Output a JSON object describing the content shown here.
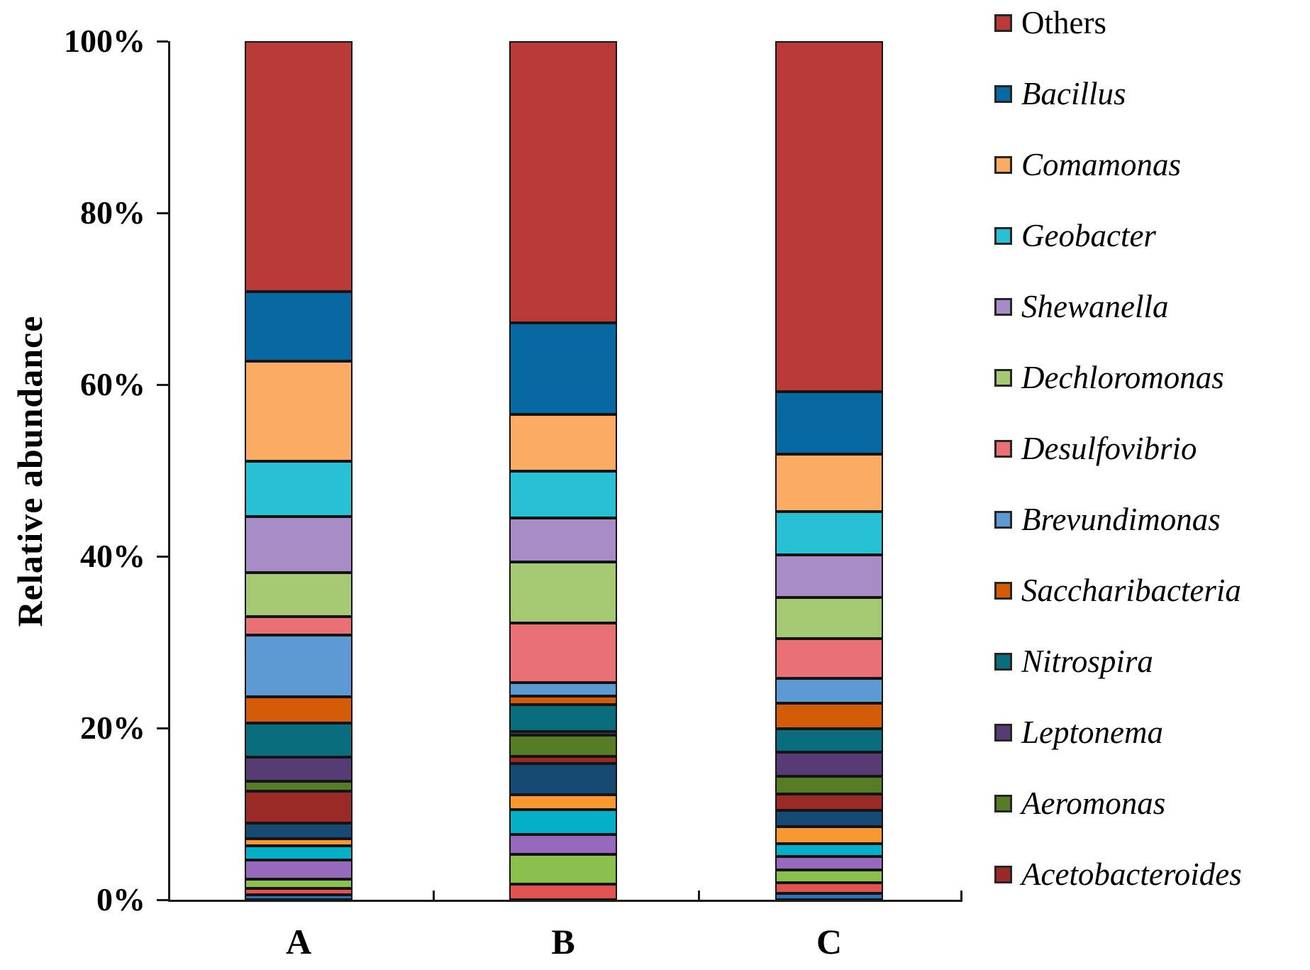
{
  "figure": {
    "background": "#ffffff",
    "axis_color": "#1a1a1a",
    "segment_border_color": "#141414",
    "text_color": "#000000"
  },
  "chart_data": {
    "type": "bar",
    "subtype": "stacked-100-percent-column",
    "title": "",
    "xlabel": "",
    "ylabel": "Relative abundance",
    "ylim": [
      0,
      100
    ],
    "grid": false,
    "legend_position": "right",
    "yticks": [
      {
        "value": 100,
        "label": "100%"
      },
      {
        "value": 80,
        "label": "80%"
      },
      {
        "value": 60,
        "label": "60%"
      },
      {
        "value": 40,
        "label": "40%"
      },
      {
        "value": 20,
        "label": "20%"
      },
      {
        "value": 0,
        "label": "0%"
      }
    ],
    "categories": [
      "A",
      "B",
      "C"
    ],
    "legend": [
      {
        "key": "others",
        "label": "Others",
        "italic": false,
        "color": "#b93a37"
      },
      {
        "key": "bacillus",
        "label": "Bacillus",
        "italic": true,
        "color": "#0768a2"
      },
      {
        "key": "comamonas",
        "label": "Comamonas",
        "italic": true,
        "color": "#fcab64"
      },
      {
        "key": "geobacter",
        "label": "Geobacter",
        "italic": true,
        "color": "#27c0d4"
      },
      {
        "key": "shewanella",
        "label": "Shewanella",
        "italic": true,
        "color": "#a78cc5"
      },
      {
        "key": "dechloromonas",
        "label": "Dechloromonas",
        "italic": true,
        "color": "#a6c973"
      },
      {
        "key": "desulfovibrio",
        "label": "Desulfovibrio",
        "italic": true,
        "color": "#e97175"
      },
      {
        "key": "brevundimonas",
        "label": "Brevundimonas",
        "italic": true,
        "color": "#5d9ad3"
      },
      {
        "key": "saccharibacteria",
        "label": "Saccharibacteria",
        "italic": true,
        "color": "#d45c08"
      },
      {
        "key": "nitrospira",
        "label": "Nitrospira",
        "italic": true,
        "color": "#0a6d7d"
      },
      {
        "key": "leptonema",
        "label": "Leptonema",
        "italic": true,
        "color": "#573c74"
      },
      {
        "key": "aeromonas",
        "label": "Aeromonas",
        "italic": true,
        "color": "#567d26"
      },
      {
        "key": "acetobacteroides",
        "label": "Acetobacteroides",
        "italic": true,
        "color": "#992a26"
      }
    ],
    "unlabeled_minor_palette": {
      "m_navy": "#164a73",
      "m_orange": "#f8982f",
      "m_cyan": "#04b0c7",
      "m_purple": "#9769bd",
      "m_green": "#8cc04e",
      "m_red": "#e05351",
      "m_blue": "#2a74b8"
    },
    "note": "Segments below Acetobacteroides at the bottom of each bar are unlabeled minor genera drawn with recycled palette colours.",
    "bars": [
      {
        "category": "A",
        "segments_top_to_bottom": [
          {
            "series": "others",
            "value": 29.2
          },
          {
            "series": "bacillus",
            "value": 8.1
          },
          {
            "series": "comamonas",
            "value": 11.6
          },
          {
            "series": "geobacter",
            "value": 6.5
          },
          {
            "series": "shewanella",
            "value": 6.5
          },
          {
            "series": "dechloromonas",
            "value": 5.1
          },
          {
            "series": "desulfovibrio",
            "value": 2.2
          },
          {
            "series": "brevundimonas",
            "value": 7.2
          },
          {
            "series": "saccharibacteria",
            "value": 3.0
          },
          {
            "series": "nitrospira",
            "value": 4.0
          },
          {
            "series": "leptonema",
            "value": 2.8
          },
          {
            "series": "aeromonas",
            "value": 1.2
          },
          {
            "series": "acetobacteroides",
            "value": 3.7
          },
          {
            "series": "m_navy",
            "value": 1.8
          },
          {
            "series": "m_orange",
            "value": 0.8
          },
          {
            "series": "m_cyan",
            "value": 1.7
          },
          {
            "series": "m_purple",
            "value": 2.2
          },
          {
            "series": "m_green",
            "value": 1.1
          },
          {
            "series": "m_red",
            "value": 0.7
          },
          {
            "series": "m_blue",
            "value": 0.6
          }
        ]
      },
      {
        "category": "B",
        "segments_top_to_bottom": [
          {
            "series": "others",
            "value": 32.8
          },
          {
            "series": "bacillus",
            "value": 10.7
          },
          {
            "series": "comamonas",
            "value": 6.6
          },
          {
            "series": "geobacter",
            "value": 5.4
          },
          {
            "series": "shewanella",
            "value": 5.2
          },
          {
            "series": "dechloromonas",
            "value": 7.1
          },
          {
            "series": "desulfovibrio",
            "value": 6.9
          },
          {
            "series": "brevundimonas",
            "value": 1.6
          },
          {
            "series": "saccharibacteria",
            "value": 1.0
          },
          {
            "series": "nitrospira",
            "value": 3.1
          },
          {
            "series": "leptonema",
            "value": 0.4
          },
          {
            "series": "aeromonas",
            "value": 2.5
          },
          {
            "series": "acetobacteroides",
            "value": 0.8
          },
          {
            "series": "m_navy",
            "value": 3.7
          },
          {
            "series": "m_orange",
            "value": 1.7
          },
          {
            "series": "m_cyan",
            "value": 2.9
          },
          {
            "series": "m_purple",
            "value": 2.3
          },
          {
            "series": "m_green",
            "value": 3.5
          },
          {
            "series": "m_red",
            "value": 1.8
          }
        ]
      },
      {
        "category": "C",
        "segments_top_to_bottom": [
          {
            "series": "others",
            "value": 40.8
          },
          {
            "series": "bacillus",
            "value": 7.3
          },
          {
            "series": "comamonas",
            "value": 6.7
          },
          {
            "series": "geobacter",
            "value": 5.0
          },
          {
            "series": "shewanella",
            "value": 5.0
          },
          {
            "series": "dechloromonas",
            "value": 4.8
          },
          {
            "series": "desulfovibrio",
            "value": 4.6
          },
          {
            "series": "brevundimonas",
            "value": 2.9
          },
          {
            "series": "saccharibacteria",
            "value": 3.0
          },
          {
            "series": "nitrospira",
            "value": 2.7
          },
          {
            "series": "leptonema",
            "value": 2.8
          },
          {
            "series": "aeromonas",
            "value": 2.1
          },
          {
            "series": "acetobacteroides",
            "value": 1.9
          },
          {
            "series": "m_navy",
            "value": 1.9
          },
          {
            "series": "m_orange",
            "value": 2.0
          },
          {
            "series": "m_cyan",
            "value": 1.5
          },
          {
            "series": "m_purple",
            "value": 1.5
          },
          {
            "series": "m_green",
            "value": 1.5
          },
          {
            "series": "m_red",
            "value": 1.3
          },
          {
            "series": "m_blue",
            "value": 0.7
          }
        ]
      }
    ]
  }
}
